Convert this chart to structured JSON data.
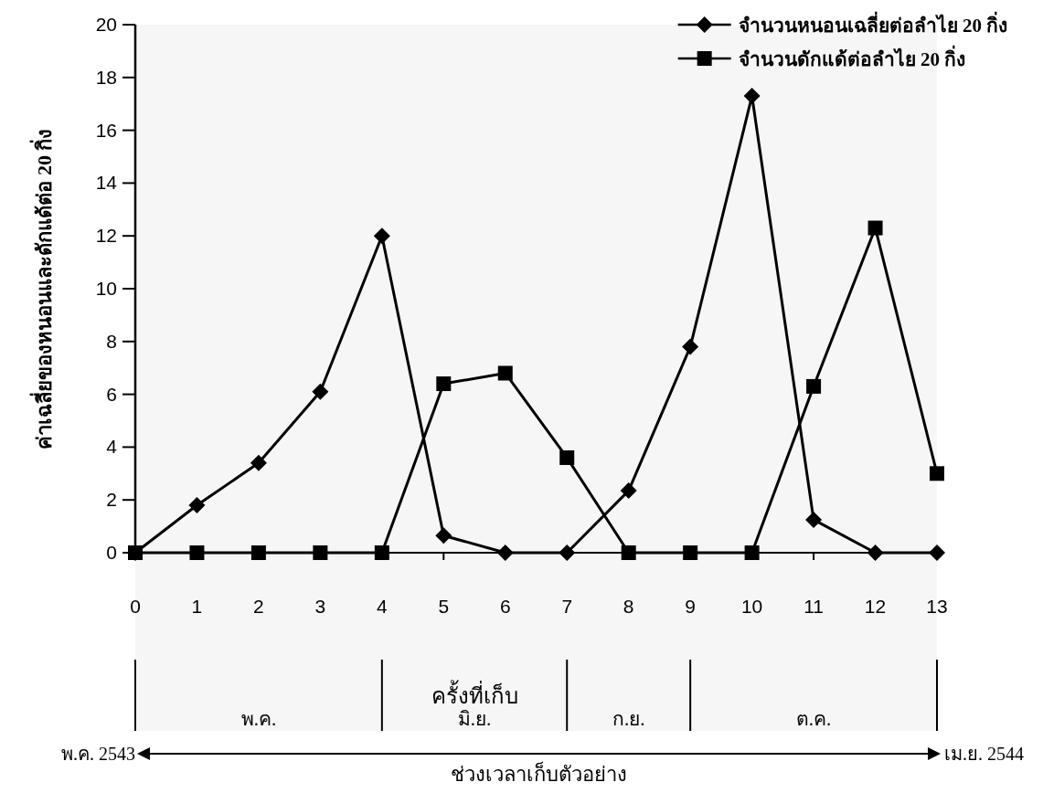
{
  "chart_data": {
    "type": "line",
    "xlabel": "ครั้งที่เก็บ",
    "ylabel": "ค่าเฉลี่ยของหนอนและดักแด้ต่อ 20 กิ่ง",
    "x": [
      0,
      1,
      2,
      3,
      4,
      5,
      6,
      7,
      8,
      9,
      10,
      11,
      12,
      13
    ],
    "series": [
      {
        "name": "จำนวนหนอนเฉลี่ยต่อลำไย 20 กิ่ง",
        "color": "#000000",
        "marker": "diamond",
        "values": [
          0,
          1.8,
          3.4,
          6.1,
          12.0,
          0.65,
          0,
          0,
          2.35,
          7.8,
          17.3,
          1.25,
          0,
          0
        ]
      },
      {
        "name": "จำนวนดักแด้ต่อลำไย 20 กิ่ง",
        "color": "#000000",
        "marker": "square",
        "values": [
          0,
          0,
          0,
          0,
          0,
          6.4,
          6.8,
          3.6,
          0,
          0,
          0,
          6.3,
          12.3,
          3.0
        ]
      }
    ],
    "xlim": [
      0,
      13
    ],
    "xticks": [
      0,
      1,
      2,
      3,
      4,
      5,
      6,
      7,
      8,
      9,
      10,
      11,
      12,
      13
    ],
    "ylim": [
      0,
      20
    ],
    "yticks": [
      0,
      2,
      4,
      6,
      8,
      10,
      12,
      14,
      16,
      18,
      20
    ],
    "bands": [
      {
        "axis": "x",
        "from": 0,
        "to": 4,
        "label": "พ.ค."
      },
      {
        "axis": "x",
        "from": 4,
        "to": 7,
        "label": "มิ.ย."
      },
      {
        "axis": "x",
        "from": 7,
        "to": 9,
        "label": "ก.ย."
      },
      {
        "axis": "x",
        "from": 9,
        "to": 13,
        "label": "ต.ค."
      }
    ],
    "annotations": [
      "พ.ค. 2543",
      "เม.ย. 2544",
      "ช่วงเวลาเก็บตัวอย่าง"
    ],
    "legend": "top right",
    "grid": false,
    "line_style": "solid"
  }
}
